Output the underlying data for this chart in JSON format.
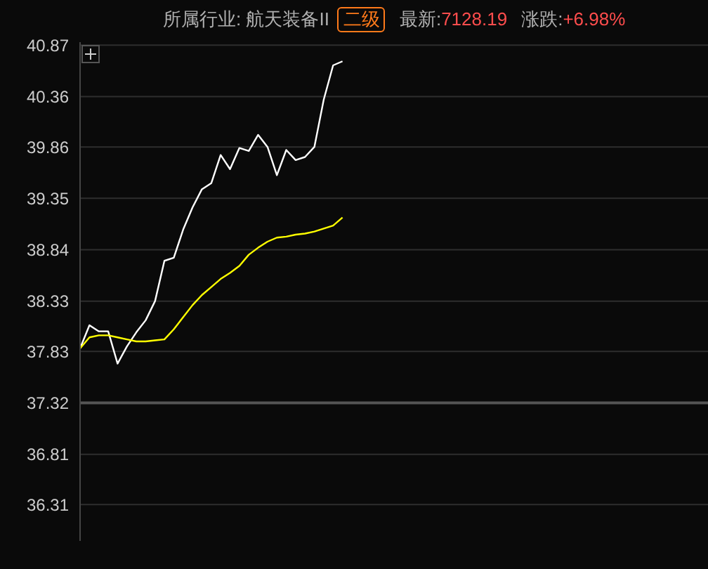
{
  "chart_data": {
    "type": "line",
    "title": "所属行业: 航天装备II",
    "annotations": [
      "二级",
      "最新:7128.19",
      "涨跌:+6.98%"
    ],
    "categories": [
      null,
      null,
      null,
      null,
      null,
      null,
      null,
      null,
      null,
      null,
      null,
      null,
      null,
      null,
      null,
      null,
      null,
      null,
      null,
      null,
      null,
      null,
      null,
      null,
      null,
      null,
      null,
      null,
      null,
      null,
      null,
      null,
      null,
      null,
      null,
      null,
      null,
      null,
      null,
      null,
      null,
      null,
      null,
      null,
      null,
      null,
      null,
      null,
      null,
      null,
      null,
      null,
      null,
      null,
      null,
      null,
      null,
      null,
      null,
      null,
      null,
      null,
      null,
      null,
      null,
      null,
      null,
      null
    ],
    "series": [
      {
        "color": "#ffffff",
        "values": [
          37.86,
          38.09,
          38.03,
          38.03,
          37.71,
          37.88,
          38.02,
          38.14,
          38.33,
          38.73,
          38.76,
          39.04,
          39.26,
          39.44,
          39.5,
          39.78,
          39.64,
          39.85,
          39.82,
          39.98,
          39.86,
          39.58,
          39.83,
          39.73,
          39.76,
          39.86,
          40.33,
          40.67,
          40.71,
          null,
          null,
          null,
          null,
          null,
          null,
          null,
          null,
          null,
          null,
          null,
          null,
          null,
          null,
          null,
          null,
          null,
          null,
          null,
          null,
          null,
          null,
          null,
          null,
          null,
          null,
          null,
          null,
          null,
          null,
          null,
          null,
          null,
          null,
          null,
          null,
          null,
          null,
          null
        ]
      },
      {
        "color": "#ffff00",
        "values": [
          37.86,
          37.97,
          37.99,
          37.99,
          37.97,
          37.95,
          37.93,
          37.93,
          37.94,
          37.95,
          38.05,
          38.17,
          38.29,
          38.39,
          38.47,
          38.55,
          38.61,
          38.68,
          38.79,
          38.86,
          38.92,
          38.96,
          38.97,
          38.99,
          39.0,
          39.02,
          39.05,
          39.08,
          39.16,
          null,
          null,
          null,
          null,
          null,
          null,
          null,
          null,
          null,
          null,
          null,
          null,
          null,
          null,
          null,
          null,
          null,
          null,
          null,
          null,
          null,
          null,
          null,
          null,
          null,
          null,
          null,
          null,
          null,
          null,
          null,
          null,
          null,
          null,
          null,
          null,
          null,
          null,
          null
        ]
      }
    ],
    "ylim": [
      35.95,
      40.9
    ],
    "yticks": [
      36.31,
      36.81,
      37.32,
      37.83,
      38.33,
      38.84,
      39.35,
      39.86,
      40.36,
      40.87
    ],
    "ref_lines": [
      {
        "axis": "y",
        "value": 37.32,
        "color": "#555555"
      }
    ],
    "grid": "y"
  }
}
